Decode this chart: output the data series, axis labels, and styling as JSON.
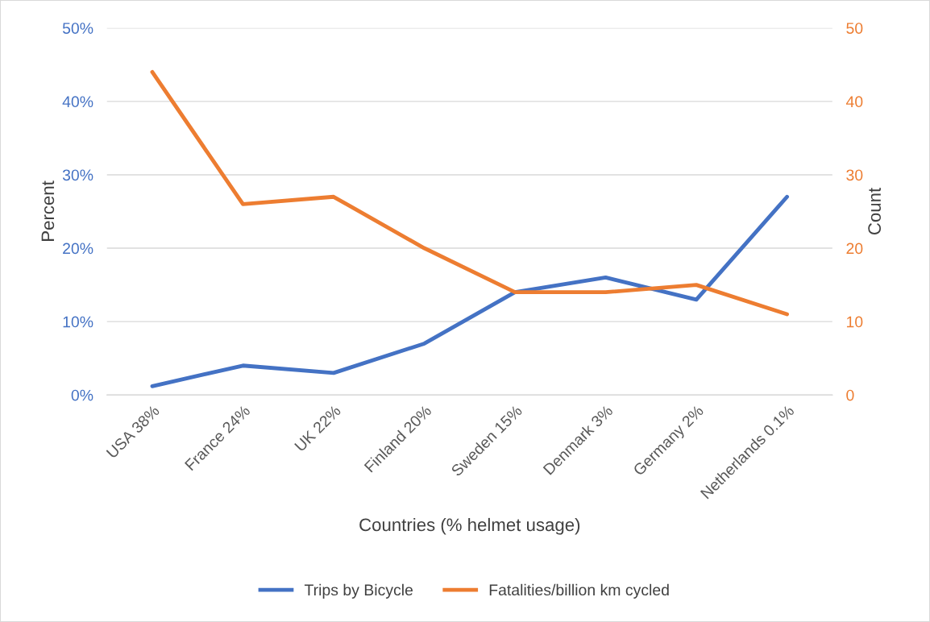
{
  "chart_data": {
    "type": "line",
    "xlabel": "Countries (% helmet usage)",
    "ylabel": "Percent",
    "y2label": "Count",
    "categories": [
      "USA 38%",
      "France 24%",
      "UK 22%",
      "Finland 20%",
      "Sweden 15%",
      "Denmark 3%",
      "Germany 2%",
      "Netherlands 0.1%"
    ],
    "series": [
      {
        "name": "Trips by Bicycle",
        "color": "#4472c4",
        "values": [
          1.2,
          4,
          3,
          7,
          14,
          16,
          13,
          27
        ]
      },
      {
        "name": "Fatalities/billion km cycled",
        "color": "#ed7d31",
        "axis": "y2",
        "values": [
          44,
          26,
          27,
          20,
          14,
          14,
          15,
          11
        ]
      }
    ],
    "ylim": [
      0,
      50
    ],
    "yticks": [
      {
        "value": 0,
        "label": "0%"
      },
      {
        "value": 10,
        "label": "10%"
      },
      {
        "value": 20,
        "label": "20%"
      },
      {
        "value": 30,
        "label": "30%"
      },
      {
        "value": 40,
        "label": "40%"
      },
      {
        "value": 50,
        "label": "50%"
      }
    ],
    "y2lim": [
      0,
      50
    ],
    "y2ticks": [
      0,
      10,
      20,
      30,
      40,
      50
    ],
    "grid": "y",
    "legend": "bottom",
    "marker": "none",
    "line_style": "solid"
  }
}
